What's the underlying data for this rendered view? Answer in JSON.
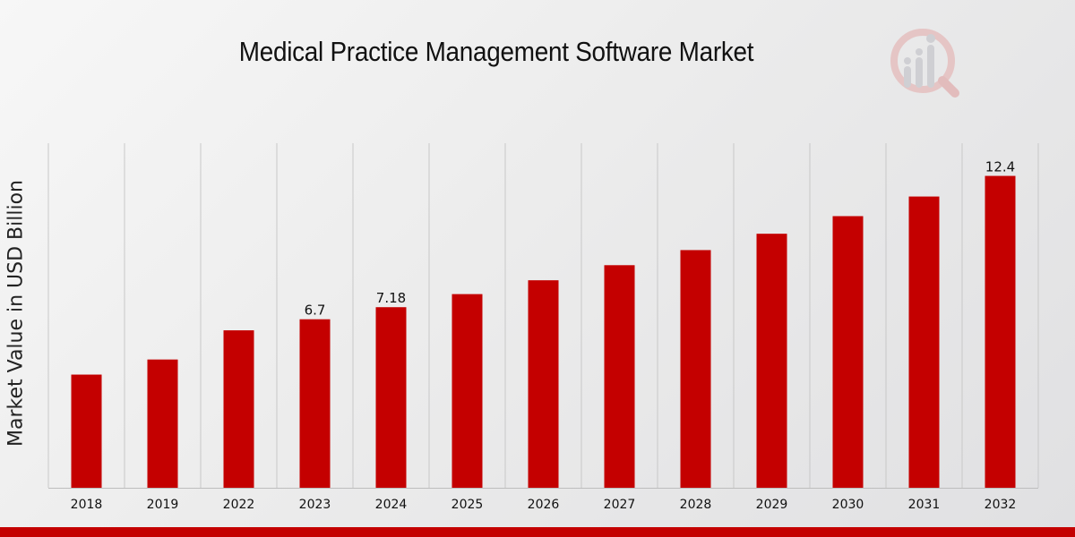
{
  "chart_data": {
    "type": "bar",
    "title": "Medical Practice Management Software Market",
    "xlabel": "",
    "ylabel": "Market Value in USD Billion",
    "categories": [
      "2018",
      "2019",
      "2022",
      "2023",
      "2024",
      "2025",
      "2026",
      "2027",
      "2028",
      "2029",
      "2030",
      "2031",
      "2032"
    ],
    "values": [
      4.5,
      5.1,
      6.26,
      6.7,
      7.18,
      7.7,
      8.25,
      8.85,
      9.45,
      10.1,
      10.8,
      11.58,
      12.4
    ],
    "data_labels": [
      "",
      "",
      "",
      "6.7",
      "7.18",
      "",
      "",
      "",
      "",
      "",
      "",
      "",
      "12.4"
    ],
    "ylim": [
      0,
      13.7
    ],
    "grid": "vertical",
    "bar_color": "#c40000",
    "grid_color": "#c8c8c8",
    "accent_color": "#c40000"
  },
  "logo": {
    "icon": "market-research-logo-icon"
  }
}
